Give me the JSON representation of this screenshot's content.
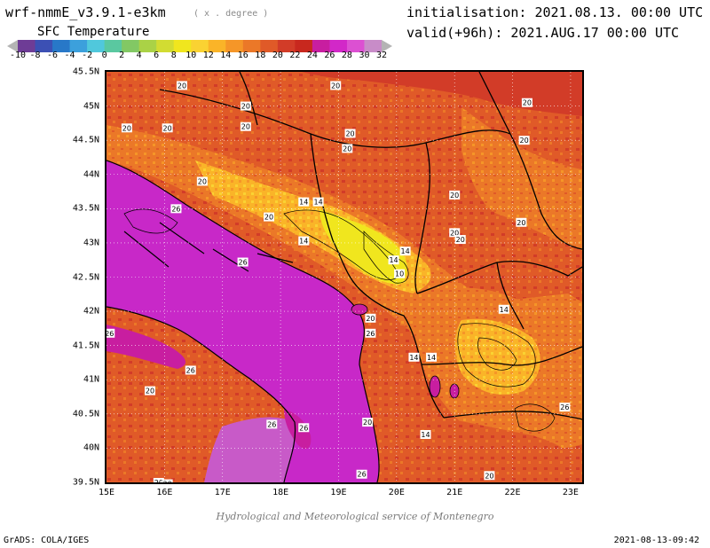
{
  "header": {
    "model": "wrf-nmmE_v3.9.1-e3km",
    "model_units": "( x . degree )",
    "initialisation": "initialisation: 2021.08.13. 00:00 UTC",
    "valid": "valid(+96h): 2021.AUG.17 00:00 UTC",
    "field": "SFC Temperature"
  },
  "colorbar": {
    "labels": [
      "-10",
      "-8",
      "-6",
      "-4",
      "-2",
      "0",
      "2",
      "4",
      "6",
      "8",
      "10",
      "12",
      "14",
      "16",
      "18",
      "20",
      "22",
      "24",
      "26",
      "28",
      "30",
      "32"
    ],
    "colors": [
      "#b4b4b4",
      "#6e3c96",
      "#3c50b4",
      "#2878c8",
      "#3ca0dc",
      "#50c8dc",
      "#5ac8a0",
      "#82c864",
      "#aad246",
      "#d2dc32",
      "#f0e61e",
      "#fad232",
      "#fab428",
      "#f59628",
      "#eb7828",
      "#e05a28",
      "#d23c28",
      "#c8281e",
      "#c81ea0",
      "#d228c8",
      "#dc50d2",
      "#c88cc8",
      "#b4b4b4"
    ]
  },
  "map": {
    "lat_labels": [
      "45.5N",
      "45N",
      "44.5N",
      "44N",
      "43.5N",
      "43N",
      "42.5N",
      "42N",
      "41.5N",
      "41N",
      "40.5N",
      "40N",
      "39.5N"
    ],
    "lon_labels": [
      "15E",
      "16E",
      "17E",
      "18E",
      "19E",
      "20E",
      "21E",
      "22E",
      "23E"
    ],
    "lat_range": [
      39.5,
      45.5
    ],
    "lon_range": [
      15,
      23.2
    ],
    "contour_labels": [
      {
        "text": "20",
        "lon": 16.3,
        "lat": 45.3
      },
      {
        "text": "20",
        "lon": 18.95,
        "lat": 45.3
      },
      {
        "text": "20",
        "lon": 17.4,
        "lat": 45.0
      },
      {
        "text": "20",
        "lon": 15.35,
        "lat": 44.68
      },
      {
        "text": "20",
        "lon": 16.05,
        "lat": 44.68
      },
      {
        "text": "20",
        "lon": 17.4,
        "lat": 44.7
      },
      {
        "text": "20",
        "lon": 19.2,
        "lat": 44.6
      },
      {
        "text": "20",
        "lon": 19.15,
        "lat": 44.38
      },
      {
        "text": "20",
        "lon": 16.65,
        "lat": 43.9
      },
      {
        "text": "20",
        "lon": 17.8,
        "lat": 43.38
      },
      {
        "text": "20",
        "lon": 21.0,
        "lat": 43.15
      },
      {
        "text": "20",
        "lon": 21.1,
        "lat": 43.05
      },
      {
        "text": "20",
        "lon": 22.15,
        "lat": 43.3
      },
      {
        "text": "20",
        "lon": 22.2,
        "lat": 44.5
      },
      {
        "text": "20",
        "lon": 21.0,
        "lat": 43.7
      },
      {
        "text": "20",
        "lon": 22.25,
        "lat": 45.05
      },
      {
        "text": "20",
        "lon": 19.55,
        "lat": 41.9
      },
      {
        "text": "20",
        "lon": 15.75,
        "lat": 40.84
      },
      {
        "text": "20",
        "lon": 19.5,
        "lat": 40.38
      },
      {
        "text": "20",
        "lon": 15.9,
        "lat": 39.5
      },
      {
        "text": "20",
        "lon": 16.05,
        "lat": 39.48
      },
      {
        "text": "20",
        "lon": 21.6,
        "lat": 39.6
      },
      {
        "text": "26",
        "lon": 16.2,
        "lat": 43.5
      },
      {
        "text": "26",
        "lon": 17.35,
        "lat": 42.72
      },
      {
        "text": "26",
        "lon": 15.05,
        "lat": 41.68
      },
      {
        "text": "26",
        "lon": 19.55,
        "lat": 41.68
      },
      {
        "text": "26",
        "lon": 16.45,
        "lat": 41.14
      },
      {
        "text": "26",
        "lon": 18.4,
        "lat": 40.3
      },
      {
        "text": "26",
        "lon": 17.85,
        "lat": 40.35
      },
      {
        "text": "26",
        "lon": 19.4,
        "lat": 39.62
      },
      {
        "text": "26",
        "lon": 22.9,
        "lat": 40.6
      },
      {
        "text": "14",
        "lon": 18.4,
        "lat": 43.6
      },
      {
        "text": "14",
        "lon": 18.65,
        "lat": 43.6
      },
      {
        "text": "14",
        "lon": 18.4,
        "lat": 43.03
      },
      {
        "text": "14",
        "lon": 20.15,
        "lat": 42.88
      },
      {
        "text": "14",
        "lon": 19.95,
        "lat": 42.75
      },
      {
        "text": "14",
        "lon": 21.85,
        "lat": 42.03
      },
      {
        "text": "14",
        "lon": 20.3,
        "lat": 41.33
      },
      {
        "text": "14",
        "lon": 20.6,
        "lat": 41.33
      },
      {
        "text": "14",
        "lon": 20.5,
        "lat": 40.2
      },
      {
        "text": "10",
        "lon": 20.05,
        "lat": 42.55
      }
    ]
  },
  "footer": {
    "credit": "Hydrological and Meteorological service of Montenegro",
    "grads": "GrADS: COLA/IGES",
    "timestamp": "2021-08-13-09:42"
  }
}
